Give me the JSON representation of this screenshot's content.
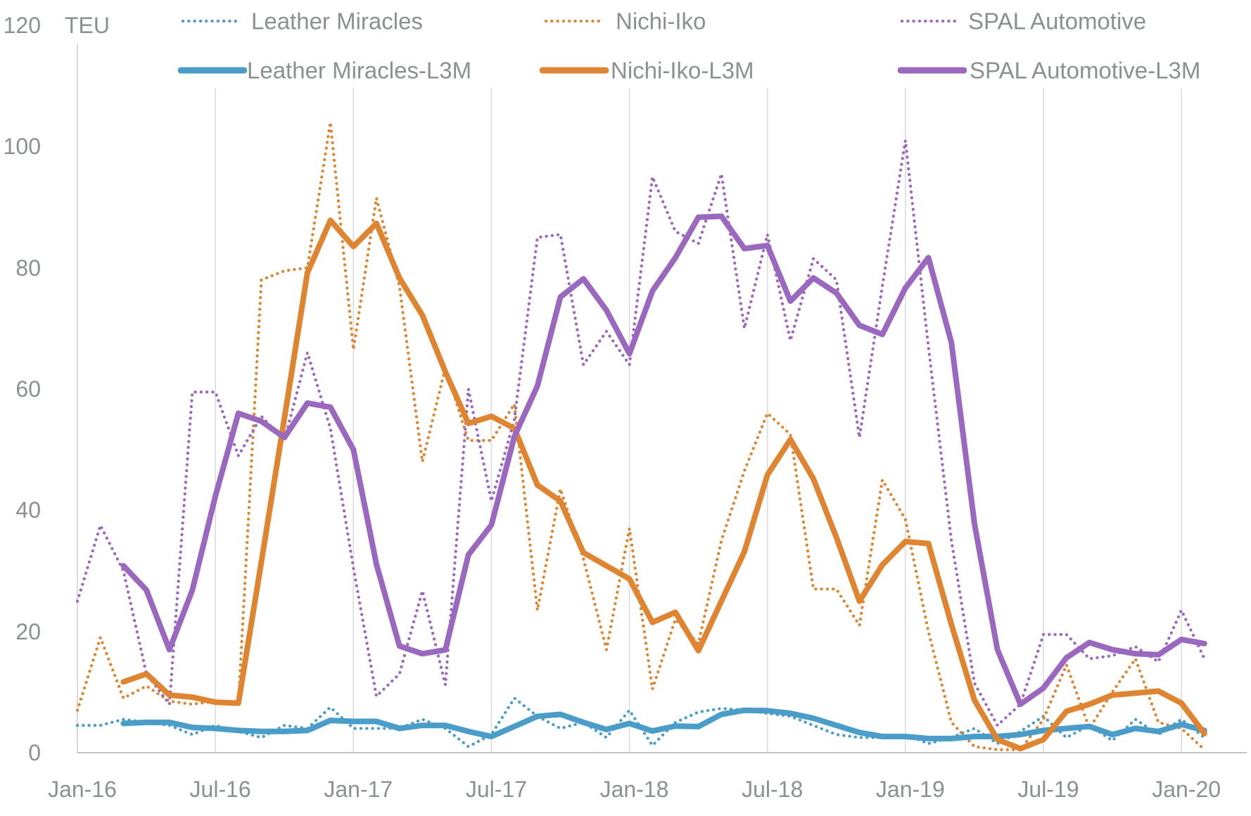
{
  "chart_data": {
    "type": "line",
    "title": "",
    "unit_label": "TEU",
    "ylabel": "TEU",
    "xlabel": "",
    "ylim": [
      0,
      120
    ],
    "y_ticks": [
      0,
      20,
      40,
      60,
      80,
      100,
      120
    ],
    "x_tick_labels": [
      "Jan-16",
      "Jul-16",
      "Jan-17",
      "Jul-17",
      "Jan-18",
      "Jul-18",
      "Jan-19",
      "Jul-19",
      "Jan-20"
    ],
    "x_tick_month_indexes": [
      0,
      6,
      12,
      18,
      24,
      30,
      36,
      42,
      48
    ],
    "months_span": 50,
    "grid": "vertical-only",
    "legend_position": "top",
    "colors": {
      "blue": "#4a9cc9",
      "orange": "#df8431",
      "purple": "#9a68be",
      "text_gray": "#8a9093",
      "gridline": "#d9d9d9",
      "axis_line": "#c6c6c6"
    },
    "series": [
      {
        "name": "Leather Miracles",
        "style": "dotted",
        "color_key": "blue",
        "values": [
          4.5,
          4.5,
          5.5,
          5,
          4.5,
          3,
          4.5,
          3.5,
          2.5,
          4.5,
          4,
          7.5,
          4,
          4,
          4,
          5.5,
          4,
          1,
          3,
          9,
          6,
          4,
          5,
          2.5,
          7,
          1.2,
          5,
          6.7,
          7.3,
          7,
          6.5,
          6,
          4.5,
          3,
          2.5,
          2.5,
          3,
          1.5,
          2.5,
          4,
          1.5,
          3.5,
          6,
          2.5,
          4.5,
          2,
          5.5,
          3,
          5.5,
          2.5
        ]
      },
      {
        "name": "Nichi-Iko",
        "style": "dotted",
        "color_key": "orange",
        "values": [
          7,
          19,
          9,
          11,
          8.5,
          8,
          8.5,
          8,
          78,
          79.5,
          80,
          104,
          66.5,
          91.5,
          77,
          48,
          63.5,
          51.5,
          51.5,
          57.5,
          23.5,
          43.5,
          32,
          17,
          37,
          10.5,
          22,
          18,
          35,
          46.5,
          56,
          52.5,
          27,
          27,
          21,
          45,
          38.5,
          20,
          5,
          1,
          0.5,
          0.5,
          5.5,
          14.5,
          4,
          10,
          15.5,
          5,
          4,
          0.5
        ]
      },
      {
        "name": "SPAL Automotive",
        "style": "dotted",
        "color_key": "purple",
        "values": [
          25,
          37.5,
          30,
          13,
          8,
          59.5,
          59.5,
          49,
          55.5,
          51.5,
          66,
          53.5,
          30.5,
          9.3,
          13,
          26.7,
          11.2,
          60,
          41.5,
          55,
          85,
          85.5,
          64,
          69.5,
          64,
          95,
          86,
          84,
          95.5,
          70,
          85.5,
          68,
          81.5,
          78,
          52,
          77,
          101,
          67,
          35,
          11.5,
          4.5,
          8,
          19.5,
          19.5,
          15.5,
          16,
          17.5,
          15,
          23.5,
          15.5
        ]
      },
      {
        "name": "Leather Miracles-L3M",
        "style": "solid",
        "color_key": "blue",
        "l3m_of": "Leather Miracles",
        "note": "trailing 3-month average of Leather Miracles, starts Mar-16"
      },
      {
        "name": "Nichi-Iko-L3M",
        "style": "solid",
        "color_key": "orange",
        "l3m_of": "Nichi-Iko",
        "note": "trailing 3-month average of Nichi-Iko, starts Mar-16"
      },
      {
        "name": "SPAL Automotive-L3M",
        "style": "solid",
        "color_key": "purple",
        "l3m_of": "SPAL Automotive",
        "note": "trailing 3-month average of SPAL Automotive, starts Mar-16"
      }
    ],
    "legend": {
      "rows": [
        {
          "entries": [
            "Leather Miracles",
            "Nichi-Iko",
            "SPAL Automotive"
          ]
        },
        {
          "entries": [
            "Leather Miracles-L3M",
            "Nichi-Iko-L3M",
            "SPAL Automotive-L3M"
          ]
        }
      ]
    }
  }
}
